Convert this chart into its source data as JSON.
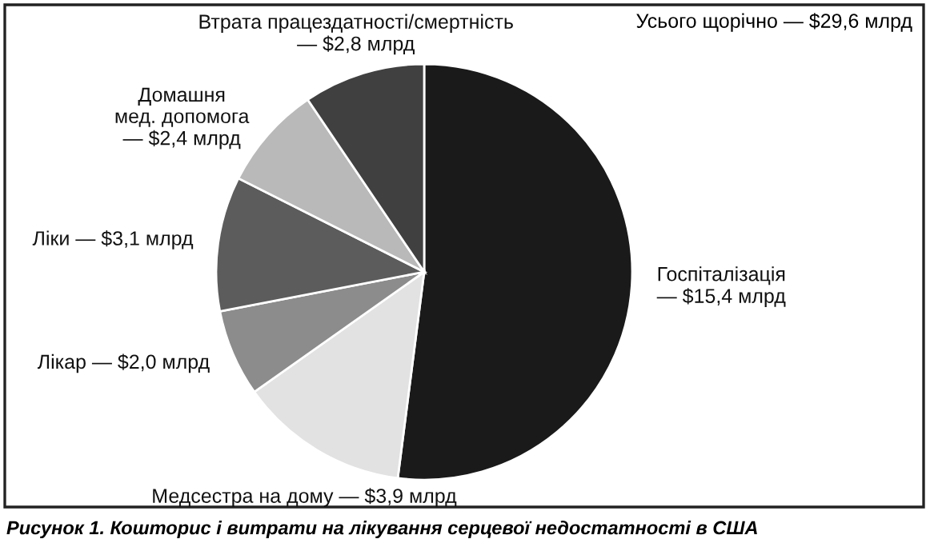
{
  "chart_data": {
    "type": "pie",
    "title": "Рисунок 1. Кошторис і витрати на лікування серцевої недостатності в США",
    "annotations": [
      "Усього щорічно — $29,6 млрд"
    ],
    "categories": [
      "Госпіталізація",
      "Медсестра на дому",
      "Лікар",
      "Ліки",
      "Домашня\nмед. допомога",
      "Втрата працездатності/смертність"
    ],
    "values": [
      15.4,
      3.9,
      2.0,
      3.1,
      2.4,
      2.8
    ],
    "value_labels": [
      "— $15,4 млрд",
      "— $3,9 млрд",
      "— $2,0 млрд",
      "— $3,1 млрд",
      "— $2,4 млрд",
      "— $2,8 млрд"
    ],
    "colors": [
      "#1a1a1a",
      "#e2e2e2",
      "#8c8c8c",
      "#5c5c5c",
      "#b9b9b9",
      "#404040"
    ],
    "legend": false
  }
}
